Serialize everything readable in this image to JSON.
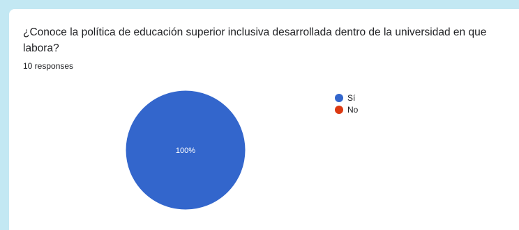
{
  "question": {
    "title": "¿Conoce la política de educación superior inclusiva desarrollada dentro de la universidad en que labora?",
    "responses": "10 responses"
  },
  "chart_data": {
    "type": "pie",
    "categories": [
      "Sí",
      "No"
    ],
    "values": [
      100,
      0
    ],
    "labels": [
      "100%",
      ""
    ],
    "colors": [
      "#3366cc",
      "#dc3912"
    ],
    "legend": "right"
  }
}
